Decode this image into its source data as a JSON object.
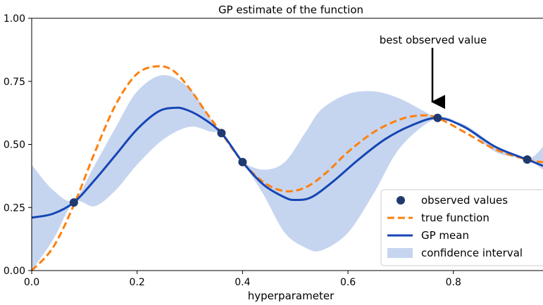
{
  "chart_data": {
    "type": "line",
    "title": "GP estimate of the function",
    "xlabel": "hyperparameter",
    "ylabel": "",
    "xlim": [
      0.0,
      0.97
    ],
    "ylim": [
      0.0,
      1.0
    ],
    "x_ticks": [
      0.0,
      0.2,
      0.4,
      0.6,
      0.8
    ],
    "x_tick_labels": [
      "0.0",
      "0.2",
      "0.4",
      "0.6",
      "0.8"
    ],
    "y_ticks": [
      0.0,
      0.25,
      0.5,
      0.75,
      1.0
    ],
    "y_tick_labels": [
      "0.00",
      "0.25",
      "0.50",
      "0.75",
      "1.00"
    ],
    "grid": false,
    "legend_position": "lower-right",
    "annotation": {
      "text": "best observed value",
      "x": 0.77,
      "y": 0.605
    },
    "series": [
      {
        "name": "confidence interval",
        "kind": "band",
        "color": "#c6d5ef",
        "x": [
          0.0,
          0.04,
          0.08,
          0.12,
          0.16,
          0.2,
          0.25,
          0.3,
          0.34,
          0.36,
          0.38,
          0.4,
          0.44,
          0.48,
          0.52,
          0.55,
          0.6,
          0.65,
          0.7,
          0.77,
          0.82,
          0.88,
          0.94,
          0.97
        ],
        "upper": [
          0.42,
          0.32,
          0.28,
          0.42,
          0.57,
          0.71,
          0.775,
          0.72,
          0.6,
          0.545,
          0.48,
          0.43,
          0.4,
          0.43,
          0.55,
          0.64,
          0.7,
          0.71,
          0.68,
          0.605,
          0.58,
          0.495,
          0.445,
          0.49
        ],
        "lower": [
          0.0,
          0.12,
          0.27,
          0.255,
          0.32,
          0.42,
          0.52,
          0.57,
          0.55,
          0.545,
          0.48,
          0.43,
          0.3,
          0.15,
          0.09,
          0.08,
          0.15,
          0.31,
          0.49,
          0.605,
          0.57,
          0.47,
          0.44,
          0.4
        ]
      },
      {
        "name": "true function",
        "kind": "line",
        "style": "dashed",
        "color": "#ff7f0e",
        "x": [
          0.0,
          0.04,
          0.08,
          0.12,
          0.16,
          0.2,
          0.24,
          0.27,
          0.3,
          0.33,
          0.36,
          0.4,
          0.44,
          0.48,
          0.52,
          0.56,
          0.6,
          0.65,
          0.7,
          0.74,
          0.77,
          0.82,
          0.88,
          0.94,
          0.97
        ],
        "y": [
          0.0,
          0.09,
          0.26,
          0.47,
          0.66,
          0.78,
          0.81,
          0.79,
          0.72,
          0.63,
          0.545,
          0.43,
          0.35,
          0.315,
          0.33,
          0.39,
          0.47,
          0.55,
          0.6,
          0.615,
          0.605,
          0.55,
          0.48,
          0.44,
          0.43
        ]
      },
      {
        "name": "GP mean",
        "kind": "line",
        "style": "solid",
        "color": "#1546b5",
        "x": [
          0.0,
          0.04,
          0.08,
          0.12,
          0.16,
          0.2,
          0.24,
          0.27,
          0.29,
          0.32,
          0.36,
          0.4,
          0.44,
          0.48,
          0.5,
          0.53,
          0.57,
          0.62,
          0.67,
          0.72,
          0.77,
          0.82,
          0.88,
          0.94,
          0.97
        ],
        "y": [
          0.21,
          0.225,
          0.27,
          0.36,
          0.46,
          0.56,
          0.63,
          0.645,
          0.64,
          0.61,
          0.545,
          0.43,
          0.34,
          0.29,
          0.28,
          0.29,
          0.35,
          0.44,
          0.52,
          0.575,
          0.605,
          0.57,
          0.49,
          0.44,
          0.415
        ]
      },
      {
        "name": "observed values",
        "kind": "scatter",
        "color": "#1f3a6e",
        "x": [
          0.08,
          0.36,
          0.4,
          0.77,
          0.94
        ],
        "y": [
          0.27,
          0.545,
          0.43,
          0.605,
          0.44
        ]
      }
    ]
  }
}
